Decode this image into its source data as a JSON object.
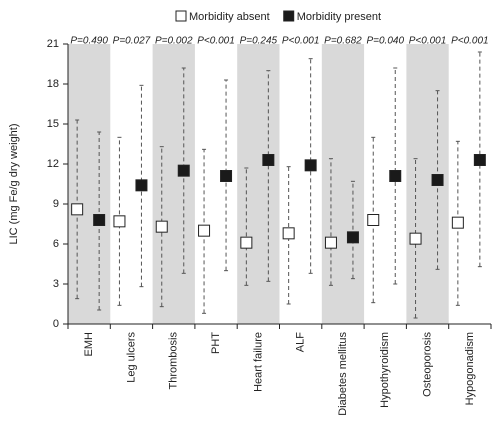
{
  "chart_data": {
    "type": "range-dot",
    "y_label": "LIC (mg Fe/g dry weight)",
    "categories": [
      "EMH",
      "Leg ulcers",
      "Thrombosis",
      "PHT",
      "Heart failure",
      "ALF",
      "Diabetes mellitus",
      "Hypothyroidism",
      "Osteoporosis",
      "Hypogonadism"
    ],
    "p_values": [
      "P=0.490",
      "P=0.027",
      "P=0.002",
      "P<0.001",
      "P=0.245",
      "P<0.001",
      "P=0.682",
      "P=0.040",
      "P<0.001",
      "P<0.001"
    ],
    "series": [
      {
        "name": "Morbidity absent",
        "color": "#ffffff",
        "values": [
          8.6,
          7.7,
          7.3,
          7.0,
          6.1,
          6.8,
          6.1,
          7.8,
          6.4,
          7.6
        ],
        "lows": [
          1.9,
          1.4,
          1.3,
          0.8,
          2.9,
          1.5,
          2.9,
          1.6,
          0.45,
          1.4
        ],
        "highs": [
          15.3,
          14.0,
          13.3,
          13.1,
          11.7,
          11.8,
          12.4,
          14.0,
          12.4,
          13.7
        ]
      },
      {
        "name": "Morbidity present",
        "color": "#1a1a1a",
        "values": [
          7.8,
          10.4,
          11.5,
          11.1,
          12.3,
          11.9,
          6.5,
          11.1,
          10.8,
          12.3
        ],
        "lows": [
          1.05,
          2.8,
          3.8,
          4.0,
          3.2,
          3.8,
          3.4,
          3.0,
          4.1,
          4.3
        ],
        "highs": [
          14.4,
          17.9,
          19.2,
          18.3,
          19.0,
          19.9,
          10.7,
          19.2,
          17.5,
          20.4
        ]
      }
    ],
    "ylim": [
      0,
      21
    ],
    "yticks": [
      0,
      3,
      6,
      9,
      12,
      15,
      18,
      21
    ],
    "band_color": "#d9d9d9",
    "legend": "top"
  }
}
